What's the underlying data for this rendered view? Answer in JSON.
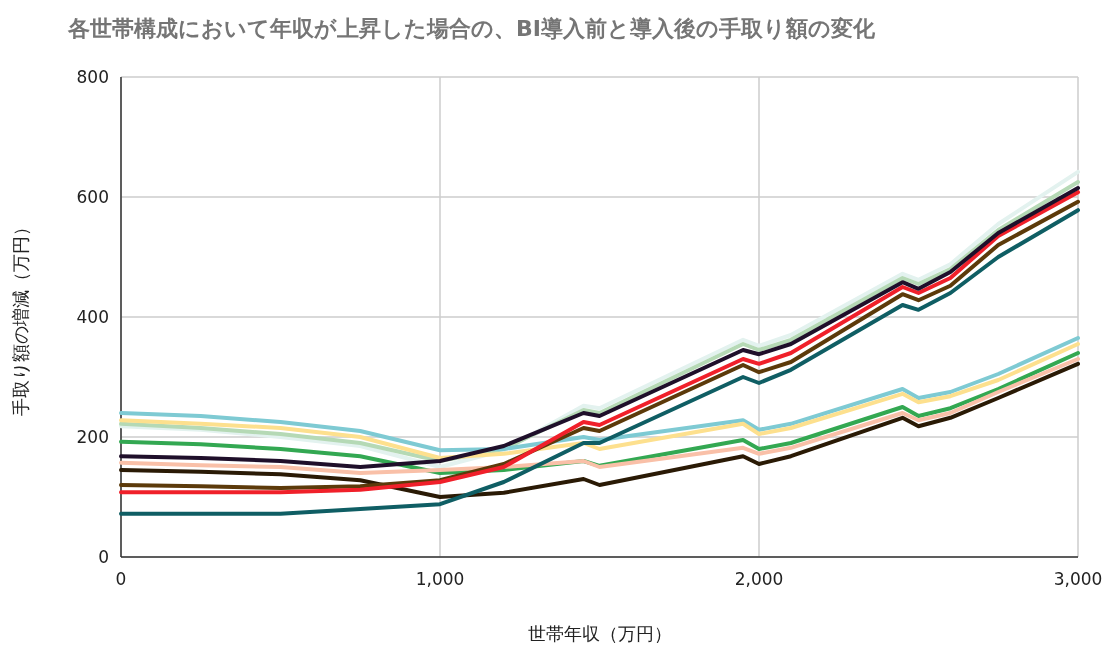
{
  "chart_data": {
    "type": "line",
    "title": "各世帯構成において年収が上昇した場合の、BI導入前と導入後の手取り額の変化",
    "xlabel": "世帯年収（万円）",
    "ylabel": "手取り額の増減（万円）",
    "x": [
      0,
      250,
      500,
      750,
      1000,
      1200,
      1450,
      1500,
      1950,
      2000,
      2100,
      2450,
      2500,
      2600,
      2750,
      3000
    ],
    "xlim": [
      0,
      3000
    ],
    "xticks": [
      0,
      {
        "value": 1000,
        "label": "1,000"
      },
      {
        "value": 2000,
        "label": "2,000"
      },
      {
        "value": 3000,
        "label": "3,000"
      }
    ],
    "ylim": [
      0,
      800
    ],
    "yticks": [
      0,
      200,
      400,
      600,
      800
    ],
    "grid": true,
    "marker": "none",
    "line_style": "solid",
    "series": [
      {
        "color": "#e3f2ef",
        "values": [
          218,
          212,
          200,
          185,
          150,
          178,
          252,
          248,
          362,
          352,
          370,
          472,
          462,
          488,
          555,
          642
        ]
      },
      {
        "color": "#b5d9b5",
        "values": [
          222,
          215,
          205,
          190,
          160,
          180,
          245,
          240,
          355,
          345,
          362,
          465,
          455,
          480,
          545,
          625
        ]
      },
      {
        "color": "#7ecad3",
        "values": [
          240,
          235,
          225,
          210,
          178,
          180,
          200,
          195,
          228,
          212,
          222,
          280,
          265,
          275,
          305,
          365
        ]
      },
      {
        "color": "#fde08e",
        "values": [
          228,
          222,
          215,
          200,
          165,
          172,
          190,
          180,
          222,
          205,
          215,
          272,
          258,
          268,
          295,
          355
        ]
      },
      {
        "color": "#33a852",
        "values": [
          192,
          188,
          180,
          168,
          140,
          145,
          160,
          152,
          195,
          180,
          190,
          250,
          235,
          248,
          280,
          340
        ]
      },
      {
        "color": "#f9c0a8",
        "values": [
          157,
          153,
          150,
          140,
          145,
          150,
          160,
          150,
          182,
          172,
          182,
          240,
          228,
          240,
          275,
          330
        ]
      },
      {
        "color": "#2a1a05",
        "values": [
          145,
          142,
          138,
          128,
          100,
          107,
          130,
          120,
          168,
          155,
          168,
          232,
          218,
          232,
          265,
          322
        ]
      },
      {
        "color": "#5c3a0a",
        "values": [
          120,
          118,
          115,
          118,
          128,
          155,
          215,
          210,
          320,
          308,
          325,
          438,
          428,
          452,
          520,
          592
        ]
      },
      {
        "color": "#f0202a",
        "values": [
          108,
          108,
          108,
          112,
          125,
          150,
          225,
          220,
          330,
          322,
          340,
          450,
          440,
          465,
          535,
          608
        ]
      },
      {
        "color": "#0f5e64",
        "values": [
          72,
          72,
          72,
          80,
          88,
          125,
          190,
          190,
          300,
          290,
          312,
          420,
          412,
          440,
          500,
          578
        ]
      },
      {
        "color": "#1f0f2a",
        "values": [
          168,
          165,
          160,
          150,
          160,
          185,
          240,
          235,
          345,
          338,
          355,
          458,
          447,
          475,
          540,
          615
        ]
      }
    ]
  }
}
